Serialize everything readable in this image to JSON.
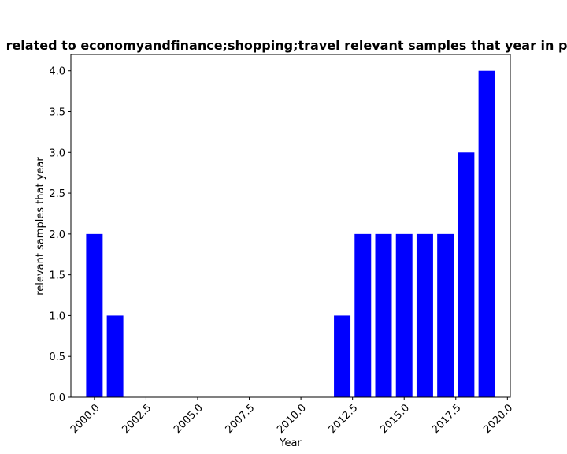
{
  "chart_data": {
    "type": "bar",
    "title": "related to economyandfinance;shopping;travel relevant samples that year in p",
    "xlabel": "Year",
    "ylabel": "relevant samples that year",
    "x": [
      2000,
      2001,
      2012,
      2013,
      2014,
      2015,
      2016,
      2017,
      2018,
      2019
    ],
    "values": [
      2,
      1,
      1,
      2,
      2,
      2,
      2,
      2,
      3,
      4
    ],
    "xlim": [
      1998.86,
      2020.14
    ],
    "ylim": [
      0,
      4.2
    ],
    "xticks": [
      "2000.0",
      "2002.5",
      "2005.0",
      "2007.5",
      "2010.0",
      "2012.5",
      "2015.0",
      "2017.5",
      "2020.0"
    ],
    "yticks": [
      "0.0",
      "0.5",
      "1.0",
      "1.5",
      "2.0",
      "2.5",
      "3.0",
      "3.5",
      "4.0"
    ],
    "bar_color": "#0000ff",
    "grid": false,
    "legend": false
  }
}
